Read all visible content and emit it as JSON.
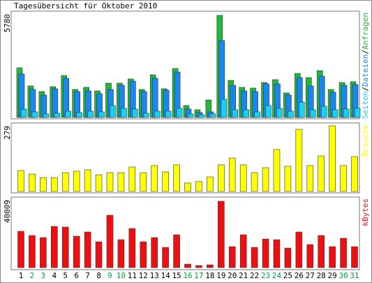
{
  "chart_data": [
    {
      "type": "bar",
      "title": "Tagesübersicht für Oktober 2010",
      "ylim": [
        0,
        5780
      ],
      "yticks": [
        5780
      ],
      "legend_separator": "/",
      "series": [
        {
          "name": "Anfragen",
          "color": "#22b83a",
          "values": [
            2811,
            1782,
            1465,
            1742,
            2375,
            1584,
            1702,
            1504,
            1940,
            1940,
            2177,
            1584,
            2415,
            1623,
            2771,
            673,
            435,
            990,
            5780,
            2098,
            1702,
            1663,
            1979,
            2138,
            1386,
            2494,
            2257,
            2653,
            1584,
            1979,
            2019
          ]
        },
        {
          "name": "Dateien",
          "color": "#1a86f0",
          "values": [
            2455,
            1584,
            1267,
            1623,
            2217,
            1465,
            1504,
            1346,
            1584,
            1821,
            2059,
            1465,
            2217,
            1544,
            2573,
            475,
            277,
            317,
            4355,
            1821,
            1504,
            1465,
            1900,
            1900,
            1267,
            2257,
            1782,
            2336,
            1425,
            1821,
            1861
          ]
        },
        {
          "name": "Seiten",
          "color": "#1ad0f0",
          "values": [
            475,
            317,
            198,
            238,
            356,
            277,
            356,
            317,
            673,
            515,
            475,
            238,
            356,
            356,
            515,
            198,
            158,
            198,
            1029,
            435,
            435,
            317,
            673,
            515,
            356,
            871,
            435,
            633,
            435,
            475,
            515
          ]
        }
      ]
    },
    {
      "type": "bar",
      "ylim": [
        0,
        279
      ],
      "yticks": [
        279
      ],
      "series": [
        {
          "name": "Besuche",
          "color": "#ffff00",
          "values": [
            89,
            74,
            59,
            59,
            80,
            86,
            92,
            71,
            80,
            80,
            104,
            80,
            110,
            83,
            113,
            36,
            42,
            62,
            113,
            142,
            113,
            80,
            101,
            178,
            107,
            264,
            110,
            151,
            279,
            110,
            148
          ]
        }
      ]
    },
    {
      "type": "bar",
      "ylim": [
        0,
        40009
      ],
      "yticks": [
        40009
      ],
      "categories": [
        "1",
        "2",
        "3",
        "4",
        "5",
        "6",
        "7",
        "8",
        "9",
        "10",
        "11",
        "12",
        "13",
        "14",
        "15",
        "16",
        "17",
        "18",
        "19",
        "20",
        "21",
        "22",
        "23",
        "24",
        "25",
        "26",
        "27",
        "28",
        "29",
        "30",
        "31"
      ],
      "category_colors": [
        "#000",
        "#00a040",
        "#00a040",
        "#000",
        "#000",
        "#000",
        "#000",
        "#000",
        "#00a040",
        "#00a040",
        "#000",
        "#000",
        "#000",
        "#000",
        "#000",
        "#00a040",
        "#00a040",
        "#000",
        "#000",
        "#000",
        "#000",
        "#000",
        "#00a040",
        "#00a040",
        "#000",
        "#000",
        "#000",
        "#000",
        "#000",
        "#00a040",
        "#00a040"
      ],
      "series": [
        {
          "name": "kBytes",
          "color": "#ee1010",
          "values": [
            21900,
            19373,
            18110,
            24848,
            24427,
            18952,
            21479,
            15583,
            31586,
            16846,
            23585,
            15583,
            18110,
            12214,
            19794,
            2106,
            1263,
            1685,
            40009,
            12635,
            19794,
            12214,
            17267,
            16846,
            11792,
            21479,
            13898,
            19373,
            12635,
            17689,
            12635
          ]
        }
      ]
    }
  ]
}
